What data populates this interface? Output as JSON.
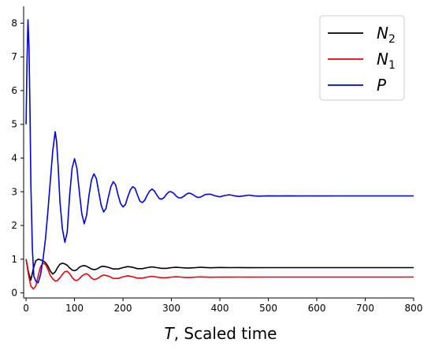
{
  "chart_data": {
    "type": "line",
    "title": "",
    "xlabel_var": "T",
    "xlabel_rest": ", Scaled time",
    "ylabel": "",
    "xlim": [
      -5,
      800
    ],
    "ylim": [
      -0.15,
      8.5
    ],
    "xticks": [
      "0",
      "100",
      "200",
      "300",
      "400",
      "500",
      "600",
      "700",
      "800"
    ],
    "yticks": [
      "0",
      "1",
      "2",
      "3",
      "4",
      "5",
      "6",
      "7",
      "8"
    ],
    "grid": false,
    "legend_position": "top-right",
    "series": [
      {
        "name": "N2",
        "label_main": "N",
        "label_sub": "2",
        "color": "#000000",
        "x": [
          0,
          5,
          10,
          15,
          20,
          25,
          30,
          35,
          40,
          45,
          50,
          55,
          60,
          65,
          70,
          75,
          80,
          85,
          90,
          95,
          100,
          105,
          110,
          115,
          120,
          125,
          130,
          135,
          140,
          145,
          150,
          155,
          160,
          170,
          180,
          190,
          200,
          210,
          220,
          230,
          240,
          250,
          260,
          270,
          280,
          290,
          300,
          310,
          320,
          330,
          340,
          350,
          360,
          380,
          400,
          420,
          440,
          460,
          500,
          600,
          700,
          800
        ],
        "y": [
          1.0,
          0.62,
          0.38,
          0.72,
          0.95,
          1.0,
          0.98,
          0.95,
          0.9,
          0.8,
          0.65,
          0.56,
          0.62,
          0.75,
          0.85,
          0.88,
          0.86,
          0.82,
          0.74,
          0.68,
          0.66,
          0.69,
          0.76,
          0.8,
          0.81,
          0.79,
          0.75,
          0.71,
          0.69,
          0.7,
          0.74,
          0.78,
          0.79,
          0.76,
          0.71,
          0.71,
          0.75,
          0.78,
          0.76,
          0.72,
          0.72,
          0.75,
          0.77,
          0.75,
          0.73,
          0.73,
          0.75,
          0.76,
          0.75,
          0.74,
          0.74,
          0.75,
          0.76,
          0.745,
          0.755,
          0.75,
          0.752,
          0.748,
          0.75,
          0.75,
          0.75,
          0.75
        ]
      },
      {
        "name": "N1",
        "label_main": "N",
        "label_sub": "1",
        "color": "#e8000b",
        "x": [
          0,
          5,
          10,
          15,
          20,
          25,
          30,
          35,
          40,
          45,
          50,
          55,
          60,
          65,
          70,
          75,
          80,
          85,
          90,
          95,
          100,
          105,
          110,
          115,
          120,
          125,
          130,
          135,
          140,
          145,
          150,
          155,
          160,
          170,
          180,
          190,
          200,
          210,
          220,
          230,
          240,
          250,
          260,
          270,
          280,
          290,
          300,
          310,
          320,
          330,
          340,
          350,
          360,
          380,
          400,
          420,
          440,
          460,
          500,
          600,
          700,
          800
        ],
        "y": [
          1.0,
          0.55,
          0.2,
          0.12,
          0.2,
          0.5,
          0.78,
          0.88,
          0.85,
          0.7,
          0.52,
          0.42,
          0.35,
          0.37,
          0.45,
          0.55,
          0.63,
          0.64,
          0.57,
          0.46,
          0.38,
          0.37,
          0.42,
          0.5,
          0.55,
          0.57,
          0.52,
          0.44,
          0.4,
          0.41,
          0.45,
          0.5,
          0.53,
          0.5,
          0.43,
          0.43,
          0.48,
          0.51,
          0.48,
          0.44,
          0.44,
          0.47,
          0.49,
          0.47,
          0.45,
          0.45,
          0.47,
          0.48,
          0.47,
          0.46,
          0.46,
          0.47,
          0.475,
          0.465,
          0.47,
          0.468,
          0.47,
          0.468,
          0.47,
          0.47,
          0.47,
          0.47
        ]
      },
      {
        "name": "P",
        "label_main": "P",
        "label_sub": "",
        "color": "#0000e8",
        "x": [
          0,
          2,
          4,
          6,
          8,
          10,
          13,
          16,
          20,
          25,
          30,
          35,
          40,
          45,
          50,
          55,
          60,
          63,
          66,
          70,
          75,
          80,
          85,
          90,
          95,
          100,
          105,
          110,
          115,
          120,
          125,
          130,
          135,
          140,
          145,
          150,
          155,
          160,
          165,
          170,
          175,
          180,
          185,
          190,
          195,
          200,
          205,
          210,
          215,
          220,
          225,
          230,
          235,
          240,
          245,
          250,
          255,
          260,
          265,
          270,
          275,
          280,
          285,
          290,
          295,
          300,
          305,
          310,
          315,
          320,
          325,
          330,
          335,
          340,
          345,
          350,
          355,
          360,
          365,
          370,
          380,
          390,
          400,
          410,
          420,
          430,
          440,
          450,
          460,
          470,
          480,
          500,
          520,
          540,
          560,
          580,
          600,
          650,
          700,
          800
        ],
        "y": [
          5.0,
          6.9,
          8.1,
          7.3,
          5.5,
          3.2,
          1.3,
          0.5,
          0.35,
          0.3,
          0.55,
          1.0,
          1.6,
          2.4,
          3.3,
          4.2,
          4.78,
          4.5,
          3.8,
          2.7,
          1.9,
          1.5,
          1.8,
          2.9,
          3.7,
          3.98,
          3.7,
          3.0,
          2.35,
          2.05,
          2.3,
          2.9,
          3.35,
          3.53,
          3.4,
          3.0,
          2.6,
          2.4,
          2.5,
          2.85,
          3.15,
          3.3,
          3.2,
          2.9,
          2.65,
          2.55,
          2.62,
          2.85,
          3.05,
          3.15,
          3.1,
          2.9,
          2.72,
          2.68,
          2.75,
          2.9,
          3.02,
          3.08,
          3.02,
          2.9,
          2.8,
          2.78,
          2.83,
          2.93,
          3.0,
          3.0,
          2.95,
          2.87,
          2.82,
          2.82,
          2.86,
          2.92,
          2.96,
          2.95,
          2.91,
          2.86,
          2.83,
          2.84,
          2.88,
          2.92,
          2.93,
          2.88,
          2.85,
          2.89,
          2.91,
          2.88,
          2.86,
          2.88,
          2.9,
          2.88,
          2.87,
          2.88,
          2.875,
          2.88,
          2.875,
          2.878,
          2.876,
          2.877,
          2.877,
          2.877
        ]
      }
    ]
  }
}
